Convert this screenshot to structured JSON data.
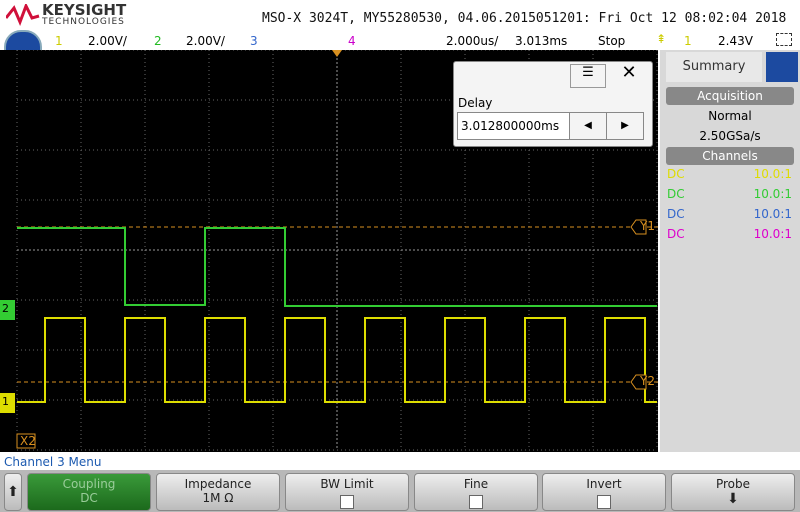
{
  "header": {
    "brand": "KEYSIGHT",
    "subbrand": "TECHNOLOGIES",
    "title": "MSO-X 3024T, MY55280530, 04.06.2015051201: Fri Oct 12 08:02:04 2018"
  },
  "channel_bar": {
    "ch1": "1",
    "ch1_scale": "2.00V/",
    "ch2": "2",
    "ch2_scale": "2.00V/",
    "ch3": "3",
    "ch4": "4",
    "timebase": "2.000us/",
    "delay": "3.013ms",
    "run_state": "Stop",
    "trigger_source": "1",
    "trigger_level": "2.43V"
  },
  "display": {
    "y1": "Y1",
    "y2": "Y2",
    "x2": "X2",
    "ch2_marker": "2",
    "ch1_marker": "1"
  },
  "delay_dialog": {
    "label": "Delay",
    "value": "3.012800000ms"
  },
  "sidebar": {
    "tab": "Summary",
    "acquisition_header": "Acquisition",
    "mode": "Normal",
    "sample_rate": "2.50GSa/s",
    "channels_header": "Channels",
    "channels": [
      {
        "coupling": "DC",
        "probe": "10.0:1"
      },
      {
        "coupling": "DC",
        "probe": "10.0:1"
      },
      {
        "coupling": "DC",
        "probe": "10.0:1"
      },
      {
        "coupling": "DC",
        "probe": "10.0:1"
      }
    ]
  },
  "menu": {
    "title": "Channel 3 Menu",
    "softkeys": [
      {
        "label": "Coupling",
        "value": "DC"
      },
      {
        "label": "Impedance",
        "value": "1M Ω"
      },
      {
        "label": "BW Limit"
      },
      {
        "label": "Fine"
      },
      {
        "label": "Invert"
      },
      {
        "label": "Probe"
      }
    ]
  }
}
